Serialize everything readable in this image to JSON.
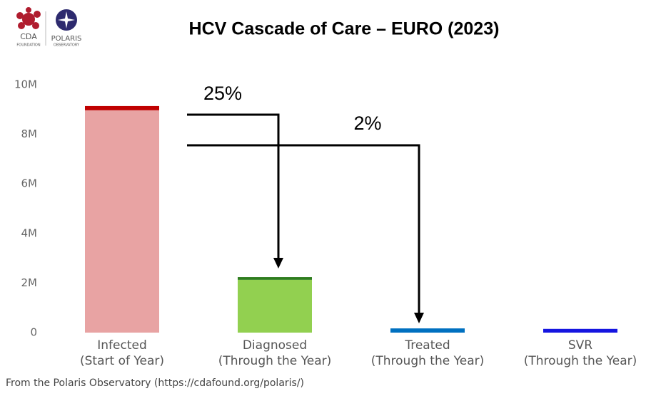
{
  "chart_data": {
    "type": "stacked_bar",
    "title": "HCV Cascade of Care – EURO (2023)",
    "logos": {
      "cda": [
        "CDA",
        "FOUNDATION"
      ],
      "polaris": [
        "POLARIS",
        "OBSERVATORY"
      ]
    },
    "categories": [
      [
        "Infected",
        "(Start of Year)"
      ],
      [
        "Diagnosed",
        "(Through the Year)"
      ],
      [
        "Treated",
        "(Through the Year)"
      ],
      [
        "SVR",
        "(Through the Year)"
      ]
    ],
    "series": [
      {
        "colors": [
          "#e8a3a3",
          "#92d050",
          "#0070c0",
          "#1515e0"
        ],
        "values": [
          8970000,
          2130000,
          170000,
          150000
        ]
      },
      {
        "colors": [
          "#c00000",
          "#2e7d1e",
          "#0070c0",
          "#1515e0"
        ],
        "values": [
          170000,
          110000,
          0,
          0
        ]
      }
    ],
    "ylim": [
      0,
      10000000
    ],
    "yticks": [
      0,
      {
        "value": 2000000,
        "label": "2M"
      },
      {
        "value": 4000000,
        "label": "4M"
      },
      {
        "value": 6000000,
        "label": "6M"
      },
      {
        "value": 8000000,
        "label": "8M"
      },
      {
        "value": 10000000,
        "label": "10M"
      }
    ],
    "grid": false,
    "annotations": [
      "25%",
      "2%"
    ],
    "source": "From the Polaris Observatory (https://cdafound.org/polaris/)"
  }
}
